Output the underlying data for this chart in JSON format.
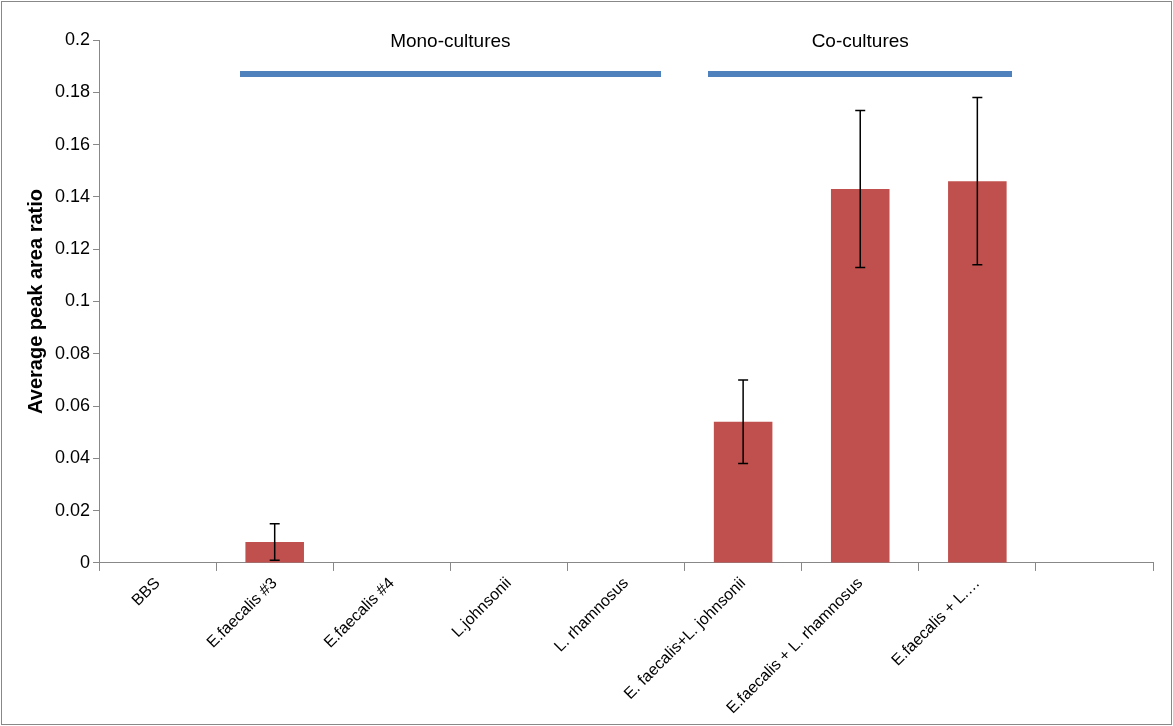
{
  "chart_data": {
    "type": "bar",
    "ylabel": "Average peak area ratio",
    "categories": [
      "BBS",
      "E.faecalis #3",
      "E.faecalis #4",
      "L.johnsonii",
      "L. rhamnosus",
      "E. faecalis+L. johnsonii",
      "E.faecalis + L. rhamnosus",
      "E.faecalis + L.…",
      null
    ],
    "values": [
      0,
      0.008,
      0,
      0,
      0,
      0.054,
      0.143,
      0.146,
      null
    ],
    "errors": [
      null,
      0.007,
      null,
      null,
      null,
      0.016,
      0.03,
      0.032,
      null
    ],
    "color": "#c0504d",
    "ylim": [
      0,
      0.2
    ],
    "yticks": [
      0,
      0.02,
      0.04,
      0.06,
      0.08,
      0.1,
      0.12,
      0.14,
      0.16,
      0.18,
      0.2
    ],
    "grid": false,
    "legend": false,
    "annotations": [
      "Mono-cultures",
      "Co-cultures"
    ]
  }
}
